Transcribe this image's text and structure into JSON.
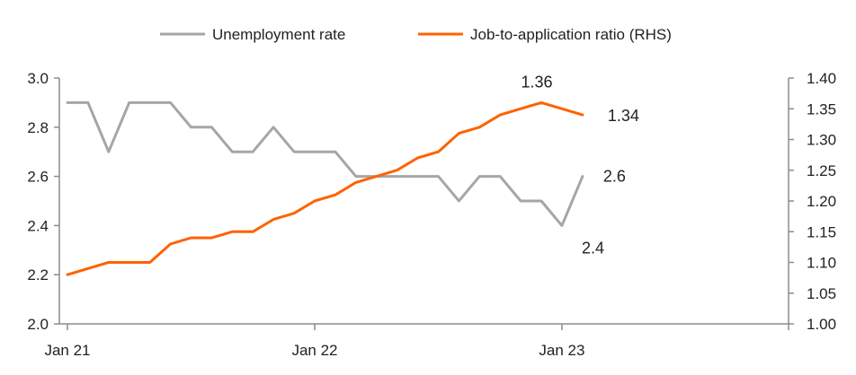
{
  "chart_data": {
    "type": "line",
    "x": [
      "2021-01",
      "2021-02",
      "2021-03",
      "2021-04",
      "2021-05",
      "2021-06",
      "2021-07",
      "2021-08",
      "2021-09",
      "2021-10",
      "2021-11",
      "2021-12",
      "2022-01",
      "2022-02",
      "2022-03",
      "2022-04",
      "2022-05",
      "2022-06",
      "2022-07",
      "2022-08",
      "2022-09",
      "2022-10",
      "2022-11",
      "2022-12",
      "2023-01",
      "2023-02"
    ],
    "x_ticks": [
      {
        "label": "Jan 21",
        "index": 0
      },
      {
        "label": "Jan 22",
        "index": 12
      },
      {
        "label": "Jan 23",
        "index": 24
      }
    ],
    "x_range_index": [
      0,
      35
    ],
    "series": [
      {
        "name": "Unemployment rate",
        "axis": "left",
        "color": "#a6a6a6",
        "values": [
          2.9,
          2.9,
          2.7,
          2.9,
          2.9,
          2.9,
          2.8,
          2.8,
          2.7,
          2.7,
          2.8,
          2.7,
          2.7,
          2.7,
          2.6,
          2.6,
          2.6,
          2.6,
          2.6,
          2.5,
          2.6,
          2.6,
          2.5,
          2.5,
          2.4,
          2.6
        ]
      },
      {
        "name": "Job-to-application ratio (RHS)",
        "axis": "right",
        "color": "#ff6200",
        "values": [
          1.08,
          1.09,
          1.1,
          1.1,
          1.1,
          1.13,
          1.14,
          1.14,
          1.15,
          1.15,
          1.17,
          1.18,
          1.2,
          1.21,
          1.23,
          1.24,
          1.25,
          1.27,
          1.28,
          1.31,
          1.32,
          1.34,
          1.35,
          1.36,
          1.35,
          1.34
        ]
      }
    ],
    "y_left": {
      "ylim": [
        2.0,
        3.0
      ],
      "ticks": [
        "2.0",
        "2.2",
        "2.4",
        "2.6",
        "2.8",
        "3.0"
      ]
    },
    "y_right": {
      "ylim": [
        1.0,
        1.4
      ],
      "ticks": [
        "1.00",
        "1.05",
        "1.10",
        "1.15",
        "1.20",
        "1.25",
        "1.30",
        "1.35",
        "1.40"
      ]
    },
    "annotations": [
      {
        "text": "1.36",
        "series": 1,
        "index": 23
      },
      {
        "text": "1.34",
        "series": 1,
        "index": 25
      },
      {
        "text": "2.6",
        "series": 0,
        "index": 25
      },
      {
        "text": "2.4",
        "series": 0,
        "index": 24
      }
    ],
    "legend_position": "top",
    "grid": false
  }
}
